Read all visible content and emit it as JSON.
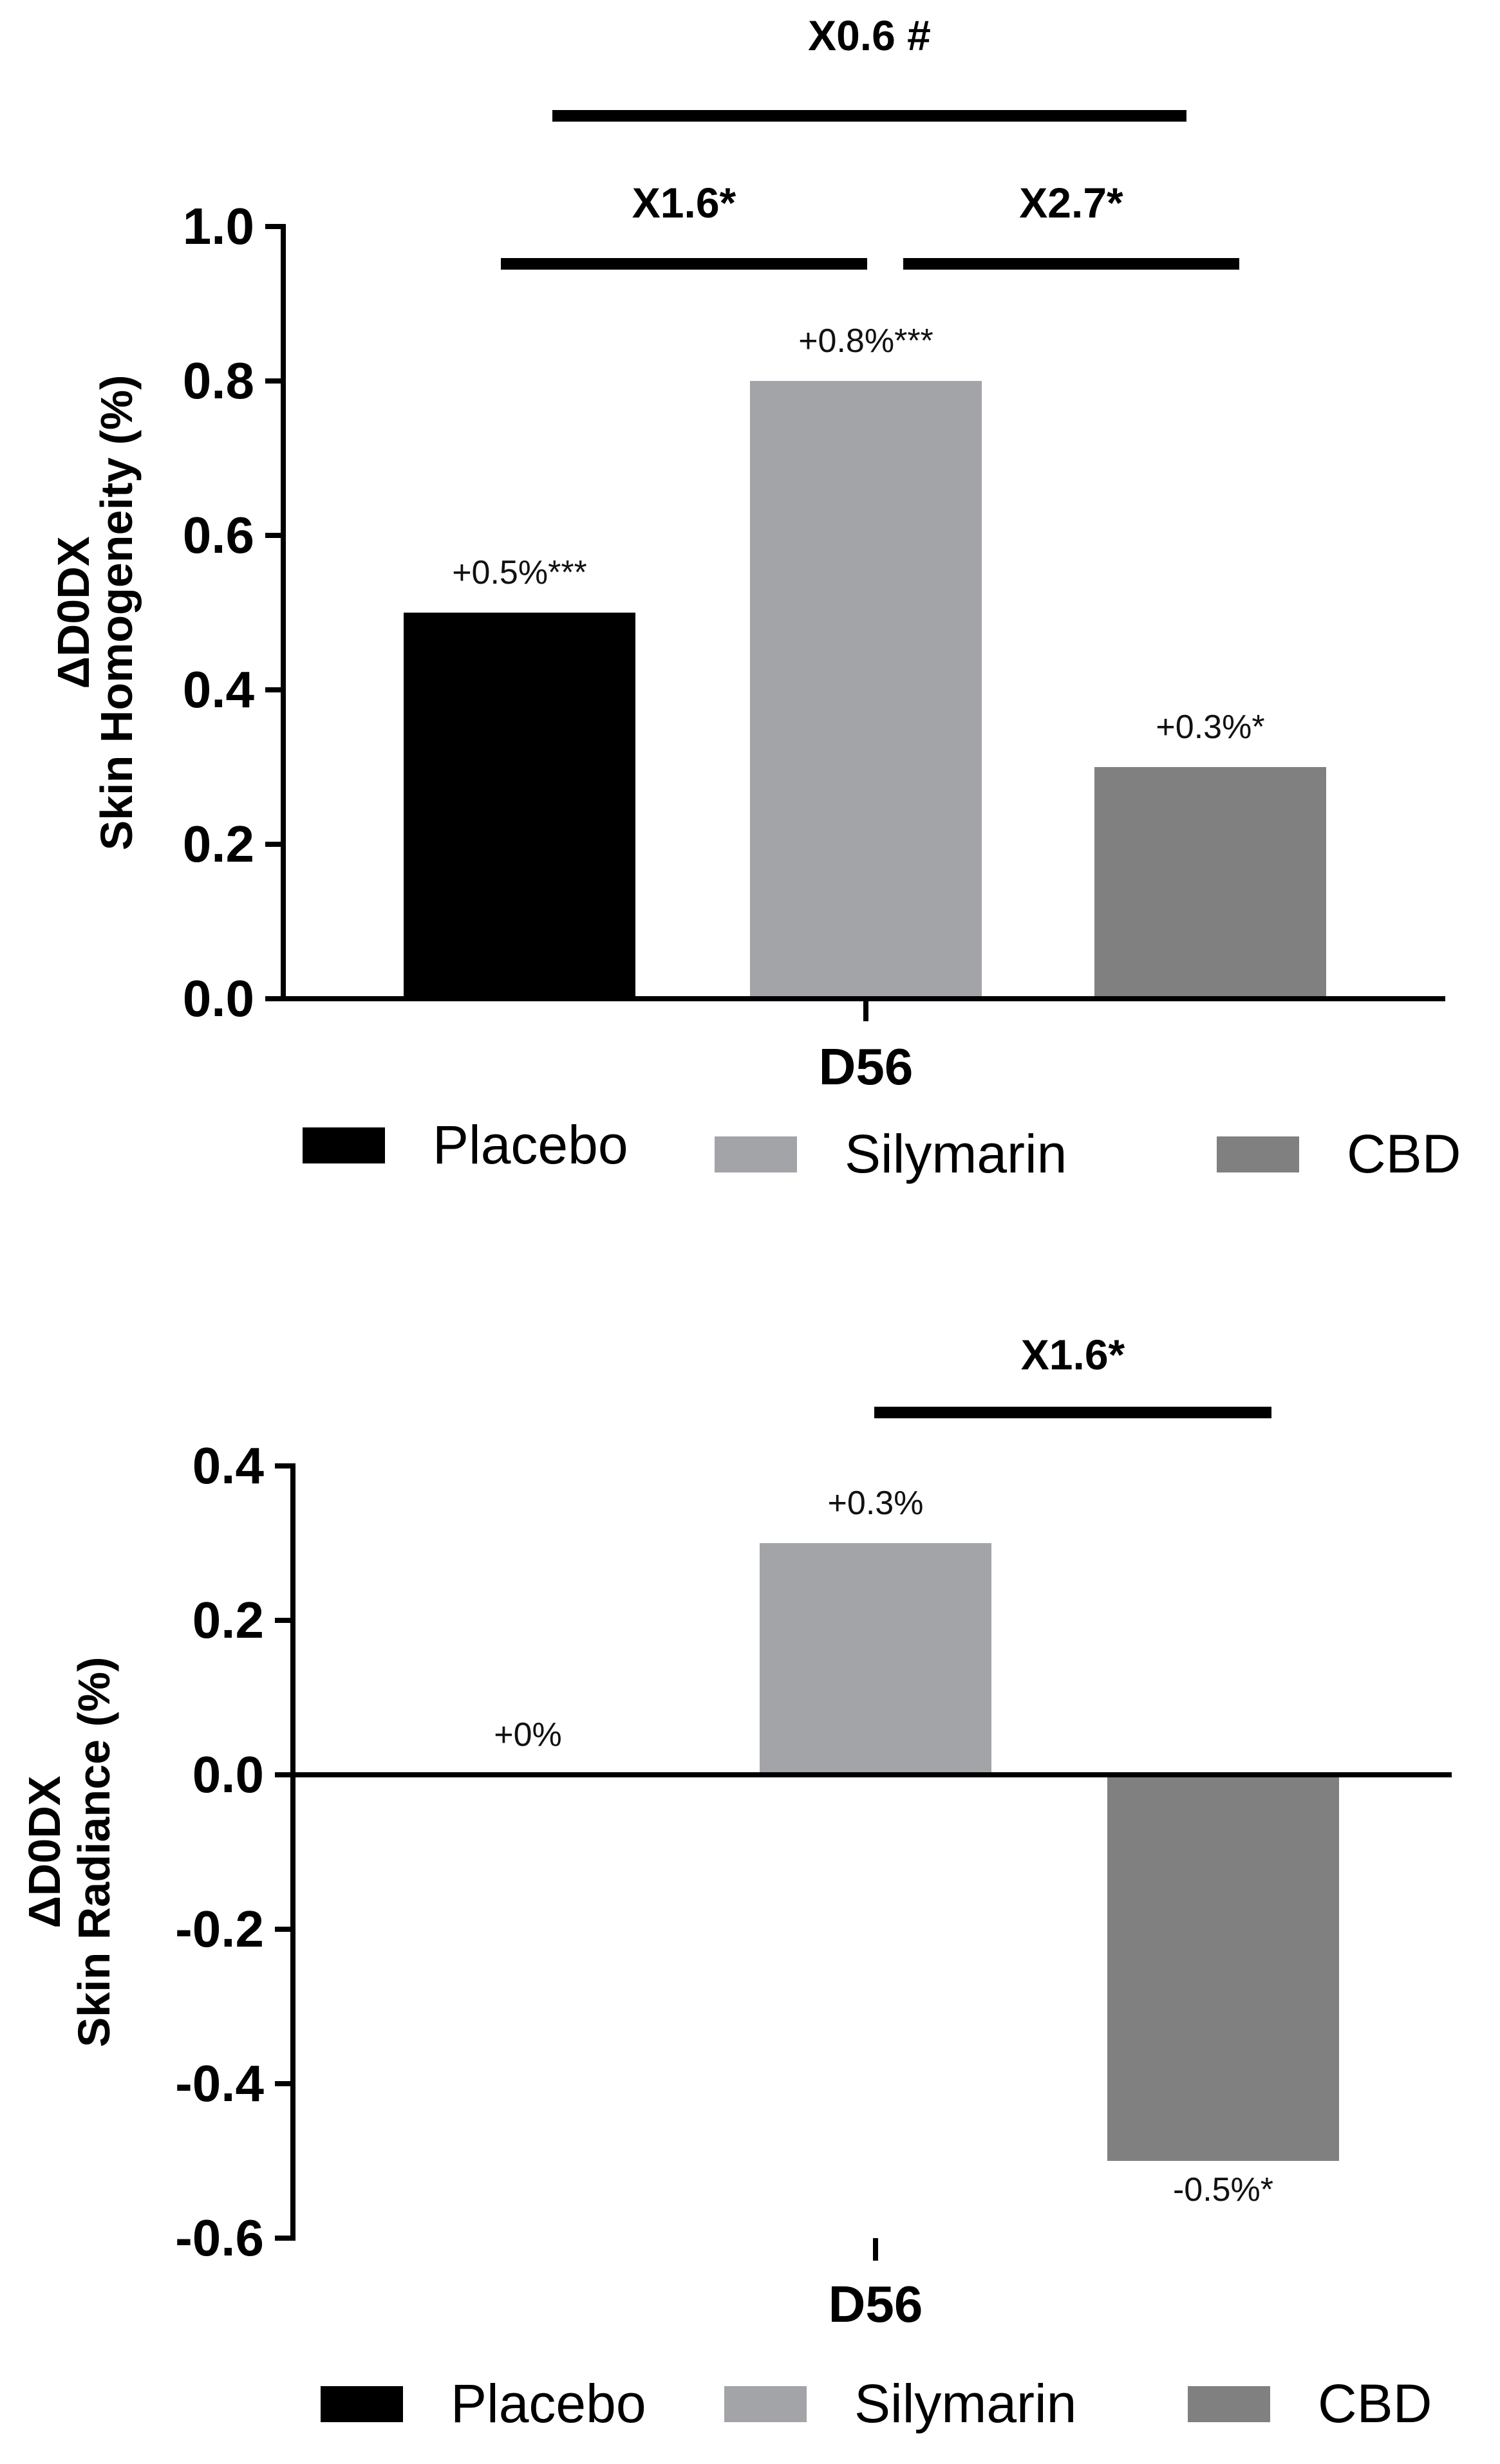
{
  "chart_data": [
    {
      "type": "bar",
      "categories": [
        "D56"
      ],
      "series": [
        {
          "name": "Placebo",
          "values": [
            0.5
          ],
          "label": "+0.5%***",
          "color": "#000000"
        },
        {
          "name": "Silymarin",
          "values": [
            0.8
          ],
          "label": "+0.8%***",
          "color": "#a3a4a7"
        },
        {
          "name": "CBD",
          "values": [
            0.3
          ],
          "label": "+0.3%*",
          "color": "#808080"
        }
      ],
      "ylabel_line1": "ΔD0DX",
      "ylabel_line2": "Skin Homogeneity (%)",
      "xlabel": "D56",
      "ylim": [
        0.0,
        1.0
      ],
      "yticks": [
        "0.0",
        "0.2",
        "0.4",
        "0.6",
        "0.8",
        "1.0"
      ],
      "comparisons": [
        {
          "label": "X0.6 #",
          "from": "Placebo",
          "to": "CBD"
        },
        {
          "label": "X1.6*",
          "from": "Placebo",
          "to": "Silymarin"
        },
        {
          "label": "X2.7*",
          "from": "Silymarin",
          "to": "CBD"
        }
      ],
      "legend": [
        "Placebo",
        "Silymarin",
        "CBD"
      ],
      "legend_position": "bottom"
    },
    {
      "type": "bar",
      "categories": [
        "D56"
      ],
      "series": [
        {
          "name": "Placebo",
          "values": [
            0.0
          ],
          "label": "+0%",
          "color": "#000000"
        },
        {
          "name": "Silymarin",
          "values": [
            0.3
          ],
          "label": "+0.3%",
          "color": "#a3a4a7"
        },
        {
          "name": "CBD",
          "values": [
            -0.5
          ],
          "label": "-0.5%*",
          "color": "#808080"
        }
      ],
      "ylabel_line1": "ΔD0DX",
      "ylabel_line2": "Skin Radiance (%)",
      "xlabel": "D56",
      "ylim": [
        -0.6,
        0.4
      ],
      "yticks": [
        "-0.6",
        "-0.4",
        "-0.2",
        "0.0",
        "0.2",
        "0.4"
      ],
      "comparisons": [
        {
          "label": "X1.6*",
          "from": "Silymarin",
          "to": "CBD"
        }
      ],
      "legend": [
        "Placebo",
        "Silymarin",
        "CBD"
      ],
      "legend_position": "bottom"
    }
  ]
}
